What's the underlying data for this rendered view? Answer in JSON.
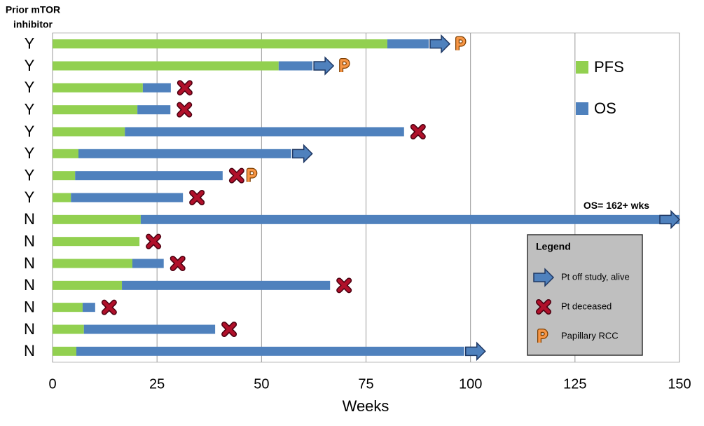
{
  "chart_data": {
    "type": "swimmer",
    "y_header": [
      "Prior mTOR",
      "inhibitor"
    ],
    "x_label": "Weeks",
    "categories": [
      "Y",
      "Y",
      "Y",
      "Y",
      "Y",
      "Y",
      "Y",
      "Y",
      "N",
      "N",
      "N",
      "N",
      "N",
      "N",
      "N"
    ],
    "series": [
      {
        "name": "PFS",
        "color": "#92d050",
        "values": [
          80.1,
          54.1,
          21.6,
          20.3,
          17.3,
          6.2,
          5.4,
          4.4,
          21.1,
          20.8,
          19.1,
          16.6,
          7.2,
          7.5,
          5.7
        ]
      },
      {
        "name": "OS",
        "color": "#4f81bd",
        "values": [
          9.9,
          8.1,
          6.7,
          7.9,
          66.8,
          50.9,
          35.3,
          26.8,
          128.9,
          0,
          7.5,
          49.8,
          3.0,
          31.4,
          92.8
        ]
      }
    ],
    "status": [
      "alive",
      "alive",
      "deceased",
      "deceased",
      "deceased",
      "alive",
      "deceased",
      "deceased",
      "alive",
      "deceased",
      "deceased",
      "deceased",
      "deceased",
      "deceased",
      "alive"
    ],
    "papillary": [
      true,
      true,
      false,
      false,
      false,
      false,
      true,
      false,
      false,
      false,
      false,
      false,
      false,
      false,
      false
    ],
    "annotations": [
      {
        "row": 8,
        "text": "OS= 162+ wks"
      }
    ],
    "xlim": [
      0,
      150
    ],
    "xticks": [
      0,
      25,
      50,
      75,
      100,
      125,
      150
    ],
    "grid": true,
    "marker_legend": {
      "title": "Legend",
      "items": [
        "Pt off study, alive",
        "Pt deceased",
        "Papillary RCC"
      ]
    }
  }
}
